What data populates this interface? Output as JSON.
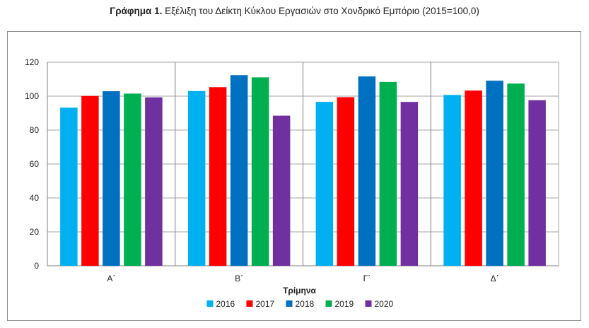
{
  "title": {
    "bold": "Γράφημα 1.",
    "text": "Εξέλιξη του Δείκτη Κύκλου Εργασιών στο Χονδρικό Εμπόριο (2015=100,0)"
  },
  "chart_data": {
    "type": "bar",
    "categories": [
      "Α΄",
      "Β΄",
      "Γ΄",
      "Δ΄"
    ],
    "xlabel": "Τρίμηνα",
    "ylabel": "",
    "ylim": [
      0,
      120
    ],
    "yticks": [
      0,
      20,
      40,
      60,
      80,
      100,
      120
    ],
    "grid": true,
    "legend": "bottom",
    "series": [
      {
        "name": "2016",
        "color": "#00b0f0",
        "values": [
          93.2,
          103.0,
          96.6,
          100.7
        ]
      },
      {
        "name": "2017",
        "color": "#ff0000",
        "values": [
          100.1,
          105.3,
          99.4,
          103.3
        ]
      },
      {
        "name": "2018",
        "color": "#0070c0",
        "values": [
          102.9,
          112.4,
          111.6,
          109.1
        ]
      },
      {
        "name": "2019",
        "color": "#00b050",
        "values": [
          101.5,
          111.1,
          108.4,
          107.4
        ]
      },
      {
        "name": "2020",
        "color": "#7030a0",
        "values": [
          99.3,
          88.5,
          96.6,
          97.6
        ]
      }
    ]
  }
}
